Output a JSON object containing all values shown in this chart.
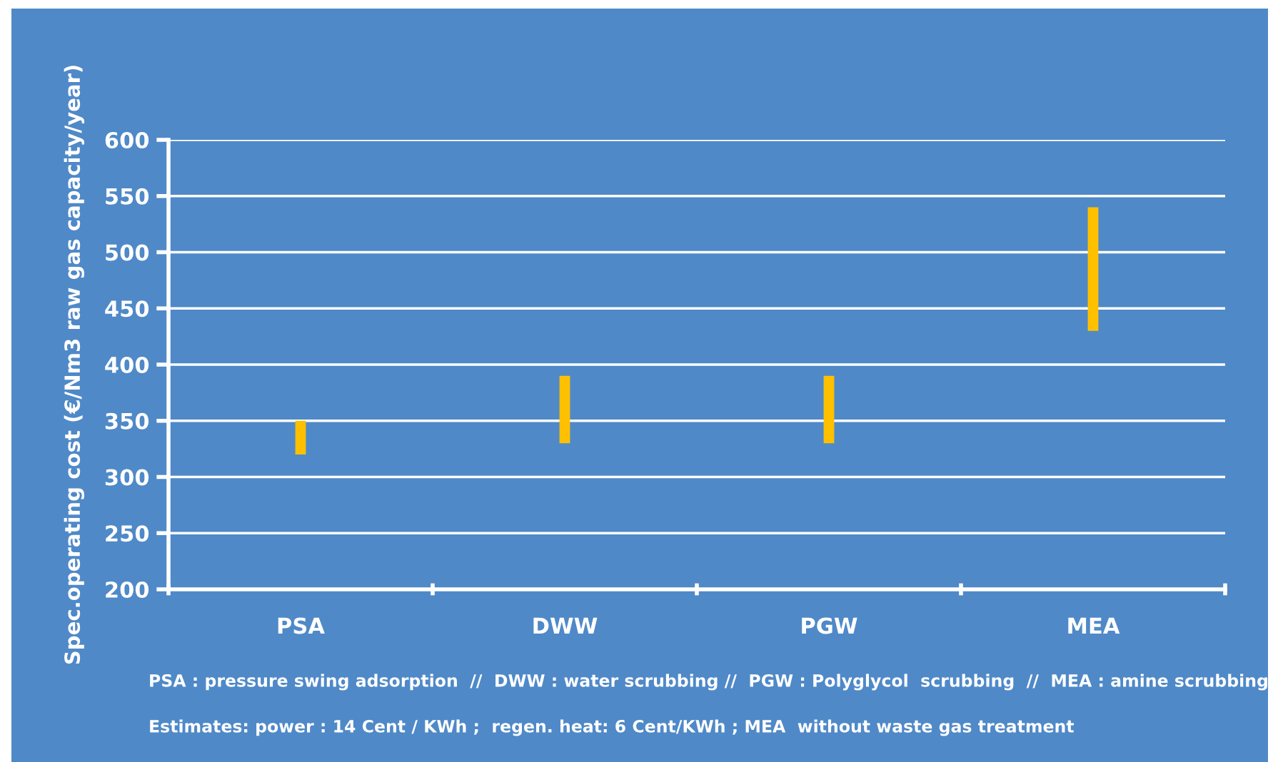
{
  "chart_data": {
    "type": "bar",
    "ylabel": "Spec.operating cost (€/Nm3 raw gas capacity/year)",
    "categories": [
      "PSA",
      "DWW",
      "PGW",
      "MEA"
    ],
    "base": [
      320,
      330,
      330,
      430
    ],
    "values": [
      30,
      60,
      60,
      110
    ],
    "color": "#ffc000",
    "ylim": [
      200,
      600
    ],
    "yticks": [
      200,
      250,
      300,
      350,
      400,
      450,
      500,
      550,
      600
    ],
    "grid": "y",
    "legend": false,
    "annotations": [
      "PSA : pressure swing adsorption  //  DWW : water scrubbing //  PGW : Polyglycol  scrubbing  //  MEA : amine scrubbing",
      "Estimates: power : 14 Cent / KWh ;  regen. heat: 6 Cent/KWh ; MEA  without waste gas treatment"
    ]
  }
}
